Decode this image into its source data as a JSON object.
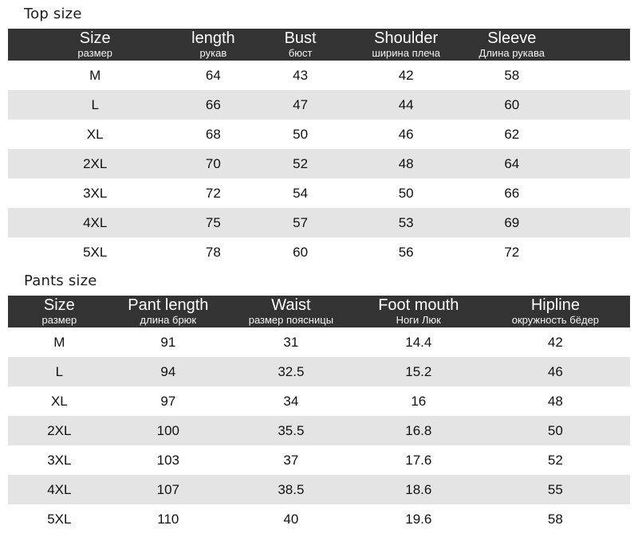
{
  "colors": {
    "header_bg": "#333333",
    "header_text": "#ffffff",
    "stripe_bg": "#e4e4e4",
    "row_bg": "#ffffff",
    "body_text": "#111111"
  },
  "chart_data": [
    {
      "type": "table",
      "title": "Top size",
      "columns": [
        {
          "en": "Size",
          "ru": "размер"
        },
        {
          "en": "length",
          "ru": "рукав"
        },
        {
          "en": "Bust",
          "ru": "бюст"
        },
        {
          "en": "Shoulder",
          "ru": "ширина плеча"
        },
        {
          "en": "Sleeve",
          "ru": "Длина рукава"
        }
      ],
      "rows": [
        [
          "M",
          "64",
          "43",
          "42",
          "58"
        ],
        [
          "L",
          "66",
          "47",
          "44",
          "60"
        ],
        [
          "XL",
          "68",
          "50",
          "46",
          "62"
        ],
        [
          "2XL",
          "70",
          "52",
          "48",
          "64"
        ],
        [
          "3XL",
          "72",
          "54",
          "50",
          "66"
        ],
        [
          "4XL",
          "75",
          "57",
          "53",
          "69"
        ],
        [
          "5XL",
          "78",
          "60",
          "56",
          "72"
        ]
      ]
    },
    {
      "type": "table",
      "title": "Pants size",
      "columns": [
        {
          "en": "Size",
          "ru": "размер"
        },
        {
          "en": "Pant length",
          "ru": "длина брюк"
        },
        {
          "en": "Waist",
          "ru": "размер поясницы"
        },
        {
          "en": "Foot mouth",
          "ru": "Ноги Люк"
        },
        {
          "en": "Hipline",
          "ru": "окружность бёдер"
        }
      ],
      "rows": [
        [
          "M",
          "91",
          "31",
          "14.4",
          "42"
        ],
        [
          "L",
          "94",
          "32.5",
          "15.2",
          "46"
        ],
        [
          "XL",
          "97",
          "34",
          "16",
          "48"
        ],
        [
          "2XL",
          "100",
          "35.5",
          "16.8",
          "50"
        ],
        [
          "3XL",
          "103",
          "37",
          "17.6",
          "52"
        ],
        [
          "4XL",
          "107",
          "38.5",
          "18.6",
          "55"
        ],
        [
          "5XL",
          "110",
          "40",
          "19.6",
          "58"
        ]
      ]
    }
  ]
}
